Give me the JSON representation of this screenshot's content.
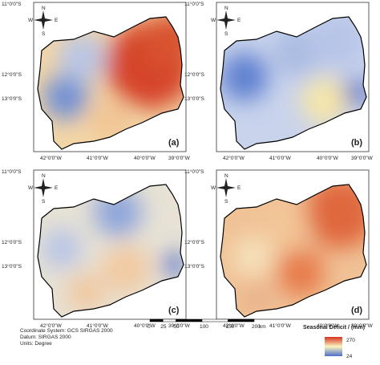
{
  "lat_labels": [
    "11°0'0\"S",
    "12°0'0\"S",
    "13°0'0\"S"
  ],
  "lon_labels": [
    "42°0'0\"W",
    "41°0'0\"W",
    "40°0'0\"W",
    "39°0'0\"W"
  ],
  "compass": {
    "n": "N",
    "s": "S",
    "w": "W",
    "e": "E"
  },
  "panels": [
    {
      "label": "(a)"
    },
    {
      "label": "(b)"
    },
    {
      "label": "(c)"
    },
    {
      "label": "(d)"
    }
  ],
  "footer": {
    "lines": [
      "Coordinate System: GCS SIRGAS 2000",
      "Datum: SIRGAS 2000",
      "Units: Degree"
    ]
  },
  "scale_bar": {
    "ticks": [
      0,
      25,
      50,
      100,
      150,
      200
    ],
    "unit": "km"
  },
  "legend": {
    "title": "Seasonal Deficit / (mm)",
    "max": 270,
    "min": 24
  }
}
